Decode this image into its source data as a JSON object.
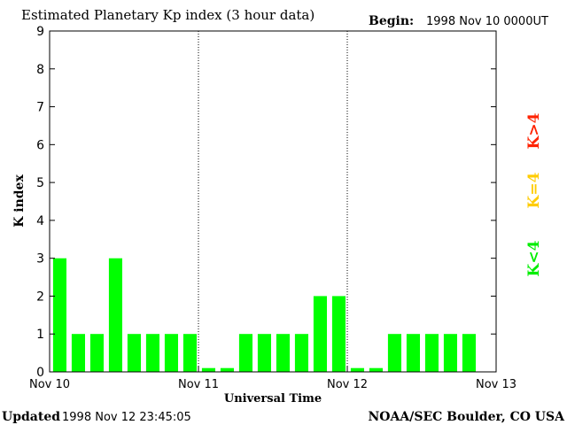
{
  "chart_data": {
    "type": "bar",
    "title": "Estimated Planetary Kp index (3 hour data)",
    "begin_label": "Begin:",
    "begin_value": "1998 Nov 10 0000UT",
    "xlabel": "Universal Time",
    "ylabel": "K index",
    "ylim": [
      0,
      9
    ],
    "yticks": [
      "0",
      "1",
      "2",
      "3",
      "4",
      "5",
      "6",
      "7",
      "8",
      "9"
    ],
    "day_labels": [
      "Nov 10",
      "Nov 11",
      "Nov 12",
      "Nov 13"
    ],
    "bars_per_day": 8,
    "values": [
      3,
      1,
      1,
      3,
      1,
      1,
      1,
      1,
      0.1,
      0.1,
      1,
      1,
      1,
      1,
      2,
      2,
      0.1,
      0.1,
      1,
      1,
      1,
      1,
      1,
      0
    ],
    "bar_color": "#00ff00",
    "legend": [
      {
        "label": "K<4",
        "color": "#00ee00"
      },
      {
        "label": "K=4",
        "color": "#ffcc00"
      },
      {
        "label": "K>4",
        "color": "#ff2200"
      }
    ]
  },
  "footer": {
    "updated_label": "Updated",
    "updated_value": "1998 Nov 12 23:45:05",
    "source": "NOAA/SEC Boulder, CO USA"
  }
}
